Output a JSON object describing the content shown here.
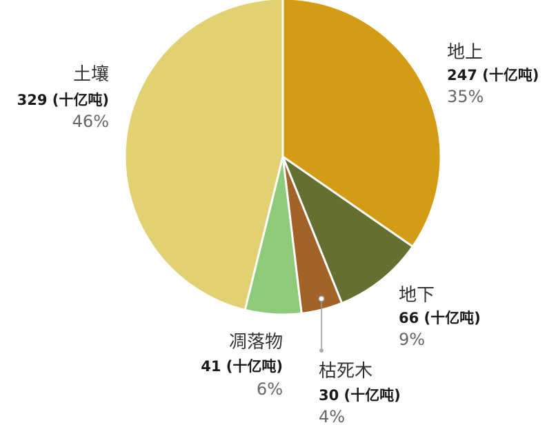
{
  "chart_data": {
    "type": "pie",
    "unit": "(十亿吨)",
    "slices": [
      {
        "label": "地上",
        "value": 247,
        "value_text": "247 (十亿吨)",
        "percent": "35%",
        "color": "#D49B14"
      },
      {
        "label": "地下",
        "value": 66,
        "value_text": "66 (十亿吨)",
        "percent": "9%",
        "color": "#646F32"
      },
      {
        "label": "枯死木",
        "value": 30,
        "value_text": "30 (十亿吨)",
        "percent": "4%",
        "color": "#A36227"
      },
      {
        "label": "凋落物",
        "value": 41,
        "value_text": "41 (十亿吨)",
        "percent": "6%",
        "color": "#8DCB7A"
      },
      {
        "label": "土壤",
        "value": 329,
        "value_text": "329 (十亿吨)",
        "percent": "46%",
        "color": "#E1D172"
      }
    ]
  }
}
